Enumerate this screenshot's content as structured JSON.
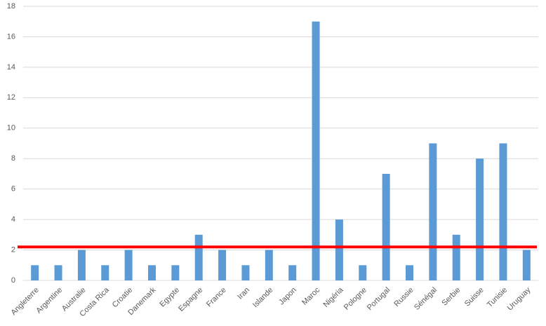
{
  "chart_data": {
    "type": "bar",
    "categories": [
      "Angleterre",
      "Argentine",
      "Australie",
      "Costa Rica",
      "Croatie",
      "Danemark",
      "Egypte",
      "Espagne",
      "France",
      "Iran",
      "Islande",
      "Japon",
      "Maroc",
      "Nigéria",
      "Pologne",
      "Portugal",
      "Russie",
      "Sénégal",
      "Serbie",
      "Suisse",
      "Tunisie",
      "Uruguay"
    ],
    "values": [
      1,
      1,
      2,
      1,
      2,
      1,
      1,
      3,
      2,
      1,
      2,
      1,
      17,
      4,
      1,
      7,
      1,
      9,
      3,
      8,
      9,
      2
    ],
    "color": "#5b9bd5",
    "ylim": [
      0,
      18
    ],
    "yticks": [
      0,
      2,
      4,
      6,
      8,
      10,
      12,
      14,
      16,
      18
    ],
    "grid": true,
    "reference_line": {
      "value": 2.2,
      "color": "#ff0000"
    }
  }
}
